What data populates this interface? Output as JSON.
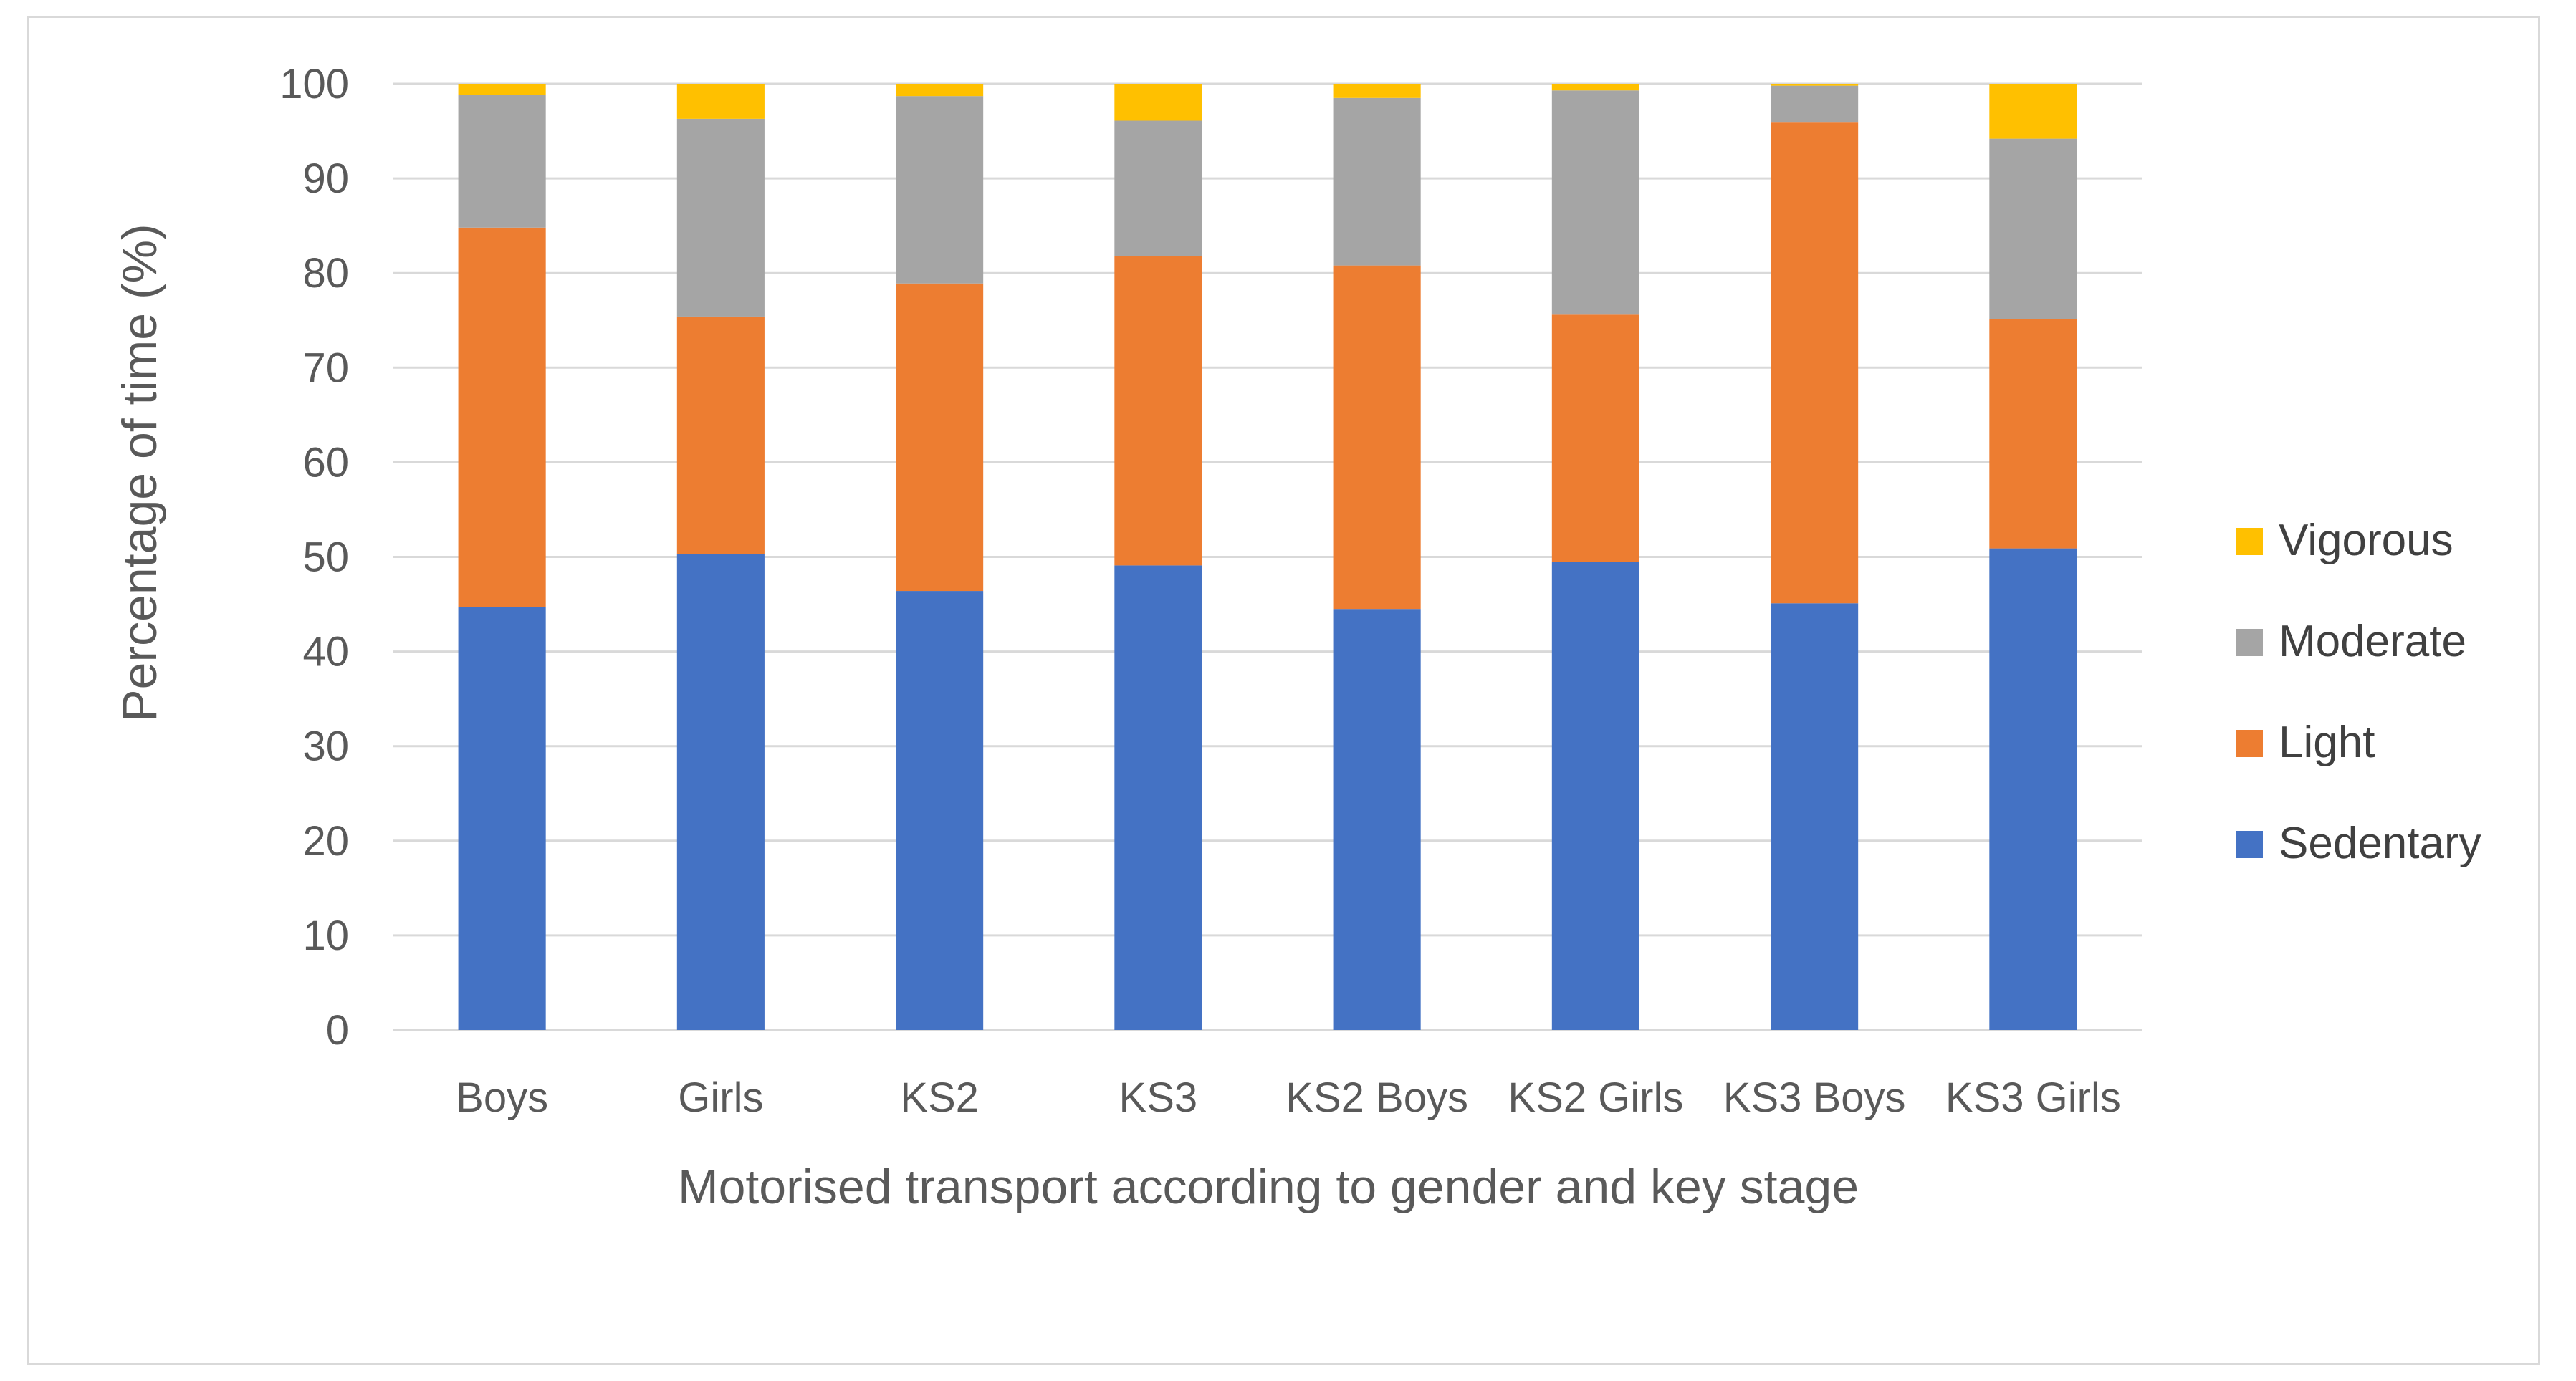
{
  "chart_data": {
    "type": "bar",
    "stacked": true,
    "title": "",
    "xlabel": "Motorised transport according to gender and key stage",
    "ylabel": "Percentage of time (%)",
    "ylim": [
      0,
      100
    ],
    "yticks": [
      0,
      10,
      20,
      30,
      40,
      50,
      60,
      70,
      80,
      90,
      100
    ],
    "grid": true,
    "legend_position": "right",
    "categories": [
      "Boys",
      "Girls",
      "KS2",
      "KS3",
      "KS2 Boys",
      "KS2 Girls",
      "KS3 Boys",
      "KS3 Girls"
    ],
    "series": [
      {
        "name": "Sedentary",
        "color": "#4472c4",
        "values": [
          44.7,
          50.3,
          46.4,
          49.1,
          44.5,
          49.5,
          45.1,
          50.9
        ]
      },
      {
        "name": "Light",
        "color": "#ed7d31",
        "values": [
          40.1,
          25.1,
          32.5,
          32.7,
          36.3,
          26.1,
          50.8,
          24.2
        ]
      },
      {
        "name": "Moderate",
        "color": "#a5a5a5",
        "values": [
          14.0,
          20.9,
          19.8,
          14.3,
          17.7,
          23.7,
          3.9,
          19.1
        ]
      },
      {
        "name": "Vigorous",
        "color": "#ffc000",
        "values": [
          1.2,
          3.7,
          1.3,
          3.9,
          1.5,
          0.7,
          0.2,
          5.8
        ]
      }
    ],
    "legend_order": [
      "Vigorous",
      "Moderate",
      "Light",
      "Sedentary"
    ]
  },
  "colors": {
    "gridline": "#d9d9d9",
    "tick_text": "#595959",
    "frame": "#d9d9d9"
  }
}
